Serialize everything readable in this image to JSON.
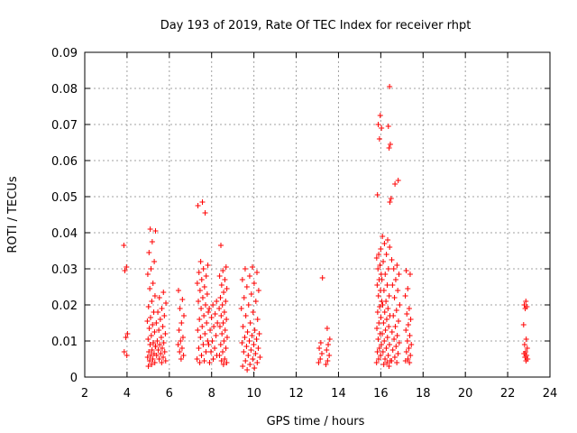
{
  "chart_data": {
    "type": "scatter",
    "title": "Day 193 of 2019, Rate Of TEC Index for receiver rhpt",
    "xlabel": "GPS time / hours",
    "ylabel": "ROTI / TECUs",
    "xlim": [
      2,
      24
    ],
    "ylim": [
      0,
      0.09
    ],
    "x_ticks": [
      "2",
      "4",
      "6",
      "8",
      "10",
      "12",
      "14",
      "16",
      "18",
      "20",
      "22",
      "24"
    ],
    "y_ticks": [
      "0",
      "0.01",
      "0.02",
      "0.03",
      "0.04",
      "0.05",
      "0.06",
      "0.07",
      "0.08",
      "0.09"
    ],
    "grid": true,
    "marker": "+",
    "marker_color": "#ff0000",
    "clusters": [
      {
        "x_range": [
          3.85,
          4.05
        ],
        "y_values": [
          0.0365,
          0.0305,
          0.0295,
          0.012,
          0.011,
          0.007,
          0.006
        ]
      },
      {
        "x_range": [
          4.95,
          5.35
        ],
        "y_values": [
          0.041,
          0.0405,
          0.0375,
          0.0345,
          0.032,
          0.03,
          0.0285,
          0.026,
          0.0245,
          0.0225,
          0.021,
          0.0195,
          0.018,
          0.0165,
          0.0155,
          0.0145,
          0.0135,
          0.0125,
          0.0115,
          0.0105,
          0.0095,
          0.009,
          0.0085,
          0.0075,
          0.007,
          0.0065,
          0.006,
          0.0055,
          0.005,
          0.0045,
          0.004,
          0.0035,
          0.003
        ]
      },
      {
        "x_range": [
          5.35,
          5.85
        ],
        "y_values": [
          0.0235,
          0.022,
          0.0205,
          0.019,
          0.018,
          0.017,
          0.016,
          0.015,
          0.014,
          0.013,
          0.012,
          0.011,
          0.01,
          0.0095,
          0.009,
          0.0085,
          0.008,
          0.0075,
          0.007,
          0.0065,
          0.006,
          0.0055,
          0.005,
          0.0045,
          0.004
        ]
      },
      {
        "x_range": [
          6.4,
          6.7
        ],
        "y_values": [
          0.024,
          0.0215,
          0.019,
          0.017,
          0.015,
          0.013,
          0.011,
          0.01,
          0.009,
          0.008,
          0.007,
          0.006,
          0.005
        ]
      },
      {
        "x_range": [
          7.3,
          7.85
        ],
        "y_values": [
          0.0485,
          0.0475,
          0.0455,
          0.032,
          0.031,
          0.03,
          0.029,
          0.028,
          0.027,
          0.026,
          0.025,
          0.024,
          0.023,
          0.022,
          0.021,
          0.02,
          0.019,
          0.018,
          0.017,
          0.016,
          0.015,
          0.014,
          0.013,
          0.012,
          0.011,
          0.01,
          0.009,
          0.008,
          0.007,
          0.006,
          0.005,
          0.0045,
          0.004
        ]
      },
      {
        "x_range": [
          7.85,
          8.3
        ],
        "y_values": [
          0.021,
          0.02,
          0.019,
          0.0175,
          0.0165,
          0.015,
          0.014,
          0.013,
          0.0115,
          0.01,
          0.009,
          0.008,
          0.007,
          0.006,
          0.005,
          0.004
        ]
      },
      {
        "x_range": [
          8.35,
          8.75
        ],
        "y_values": [
          0.0365,
          0.0305,
          0.0295,
          0.028,
          0.027,
          0.0255,
          0.0245,
          0.0235,
          0.022,
          0.021,
          0.02,
          0.019,
          0.018,
          0.017,
          0.016,
          0.015,
          0.014,
          0.013,
          0.012,
          0.011,
          0.01,
          0.009,
          0.008,
          0.007,
          0.006,
          0.005,
          0.0045,
          0.004,
          0.0035
        ]
      },
      {
        "x_range": [
          9.4,
          10.3
        ],
        "y_values": [
          0.0305,
          0.03,
          0.029,
          0.028,
          0.027,
          0.026,
          0.025,
          0.024,
          0.023,
          0.022,
          0.021,
          0.02,
          0.019,
          0.018,
          0.017,
          0.016,
          0.015,
          0.014,
          0.013,
          0.0125,
          0.012,
          0.0115,
          0.011,
          0.0105,
          0.01,
          0.0095,
          0.009,
          0.0085,
          0.008,
          0.0075,
          0.007,
          0.0065,
          0.006,
          0.0055,
          0.005,
          0.0045,
          0.004,
          0.0035,
          0.003,
          0.0025,
          0.002
        ]
      },
      {
        "x_range": [
          13.05,
          13.25
        ],
        "y_values": [
          0.0275,
          0.0095,
          0.008,
          0.0065,
          0.005,
          0.004
        ]
      },
      {
        "x_range": [
          13.4,
          13.6
        ],
        "y_values": [
          0.0135,
          0.0105,
          0.009,
          0.0075,
          0.006,
          0.0045,
          0.0035
        ]
      },
      {
        "x_range": [
          15.8,
          16.05
        ],
        "y_values": [
          0.0725,
          0.07,
          0.069,
          0.066,
          0.0505,
          0.0355,
          0.034,
          0.033,
          0.031,
          0.03,
          0.0285,
          0.027,
          0.0255,
          0.024,
          0.0225,
          0.021,
          0.0195,
          0.018,
          0.0165,
          0.015,
          0.0135,
          0.012,
          0.0105,
          0.009,
          0.008,
          0.007,
          0.006,
          0.005,
          0.004
        ]
      },
      {
        "x_range": [
          16.05,
          16.45
        ],
        "y_values": [
          0.039,
          0.038,
          0.037,
          0.036,
          0.034,
          0.032,
          0.03,
          0.0285,
          0.027,
          0.0255,
          0.024,
          0.0225,
          0.021,
          0.02,
          0.019,
          0.018,
          0.017,
          0.016,
          0.015,
          0.014,
          0.013,
          0.012,
          0.011,
          0.01,
          0.009,
          0.008,
          0.007,
          0.006,
          0.005,
          0.0045,
          0.004,
          0.0035,
          0.003
        ]
      },
      {
        "x_range": [
          16.35,
          16.5
        ],
        "y_values": [
          0.0805,
          0.0695,
          0.0645,
          0.0635,
          0.0495,
          0.0485
        ]
      },
      {
        "x_range": [
          16.5,
          16.9
        ],
        "y_values": [
          0.0545,
          0.0535,
          0.0325,
          0.031,
          0.03,
          0.0285,
          0.027,
          0.0255,
          0.024,
          0.022,
          0.02,
          0.0185,
          0.017,
          0.0155,
          0.014,
          0.0125,
          0.0115,
          0.0105,
          0.0095,
          0.0085,
          0.0075,
          0.0065,
          0.0055,
          0.0045,
          0.004
        ]
      },
      {
        "x_range": [
          17.15,
          17.45
        ],
        "y_values": [
          0.0295,
          0.0285,
          0.0245,
          0.0225,
          0.019,
          0.0175,
          0.016,
          0.0145,
          0.013,
          0.0115,
          0.01,
          0.009,
          0.008,
          0.007,
          0.006,
          0.005,
          0.0045,
          0.004
        ]
      },
      {
        "x_range": [
          22.75,
          22.95
        ],
        "y_values": [
          0.021,
          0.02,
          0.0195,
          0.019,
          0.0145,
          0.0105,
          0.009,
          0.008,
          0.007,
          0.0065,
          0.006,
          0.0055,
          0.005,
          0.0045
        ]
      }
    ]
  }
}
